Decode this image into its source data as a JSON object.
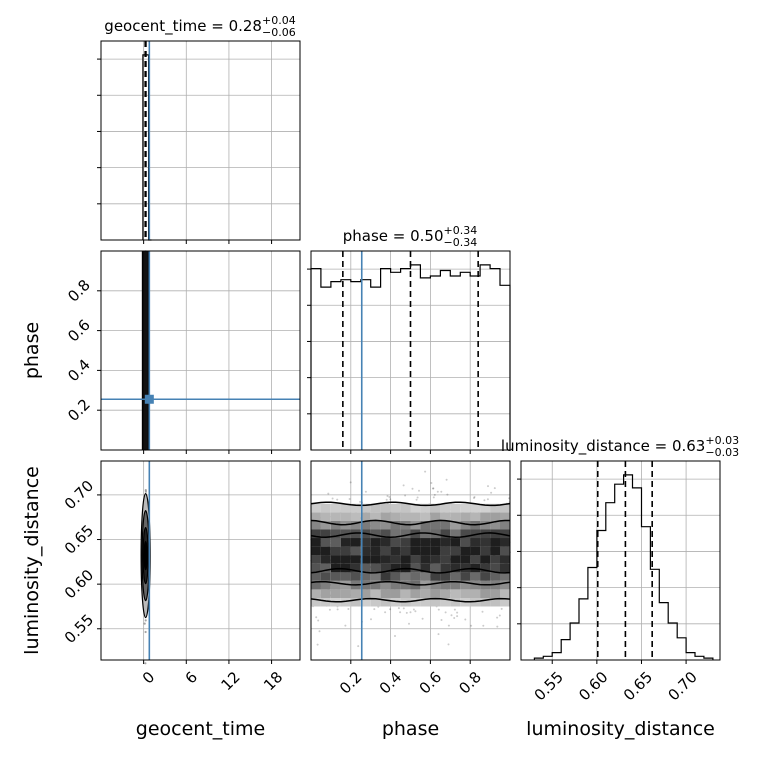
{
  "chart_data": {
    "type": "corner",
    "parameters": [
      "geocent_time",
      "phase",
      "luminosity_distance"
    ],
    "titles": {
      "geocent_time": {
        "name": "geocent_time",
        "median": "0.28",
        "plus": "+0.04",
        "minus": "−0.06"
      },
      "phase": {
        "name": "phase",
        "median": "0.50",
        "plus": "+0.34",
        "minus": "−0.34"
      },
      "luminosity_distance": {
        "name": "luminosity_distance",
        "median": "0.63",
        "plus": "+0.03",
        "minus": "−0.03"
      }
    },
    "truths": {
      "geocent_time": 0.8,
      "phase": 0.255
    },
    "axes": {
      "geocent_time": {
        "range": [
          -6,
          22
        ],
        "ticks": [
          0,
          6,
          12,
          18
        ],
        "tick_labels": [
          "0",
          "6",
          "12",
          "18"
        ],
        "grid": [
          0,
          6,
          12,
          18
        ]
      },
      "phase": {
        "range": [
          0,
          1
        ],
        "ticks": [
          0.2,
          0.4,
          0.6,
          0.8
        ],
        "tick_labels": [
          "0.2",
          "0.4",
          "0.6",
          "0.8"
        ],
        "grid": [
          0.2,
          0.4,
          0.6,
          0.8
        ]
      },
      "luminosity_distance": {
        "range": [
          0.515,
          0.738
        ],
        "ticks": [
          0.55,
          0.6,
          0.65,
          0.7
        ],
        "tick_labels": [
          "0.55",
          "0.60",
          "0.65",
          "0.70"
        ],
        "grid": [
          0.55,
          0.6,
          0.65,
          0.7
        ]
      }
    },
    "histograms": {
      "geocent_time": {
        "bins": [
          -0.1,
          0.3,
          0.7,
          1.1
        ],
        "counts": [
          1.0,
          1.0,
          0.0
        ],
        "quantiles": [
          0.22,
          0.28,
          0.32
        ]
      },
      "phase": {
        "bins": [
          0.0,
          0.05,
          0.1,
          0.15,
          0.2,
          0.25,
          0.3,
          0.35,
          0.4,
          0.45,
          0.5,
          0.55,
          0.6,
          0.65,
          0.7,
          0.75,
          0.8,
          0.85,
          0.9,
          0.95,
          1.0
        ],
        "counts": [
          0.98,
          0.88,
          0.91,
          0.92,
          0.91,
          0.92,
          0.88,
          0.98,
          0.96,
          0.98,
          1.0,
          0.93,
          0.94,
          0.97,
          0.94,
          0.96,
          0.94,
          1.0,
          0.98,
          0.89
        ],
        "quantiles": [
          0.16,
          0.5,
          0.84
        ]
      },
      "luminosity_distance": {
        "bins": [
          0.53,
          0.54,
          0.55,
          0.56,
          0.57,
          0.58,
          0.59,
          0.6,
          0.61,
          0.62,
          0.63,
          0.64,
          0.65,
          0.66,
          0.67,
          0.68,
          0.69,
          0.7,
          0.71,
          0.72,
          0.73
        ],
        "counts": [
          0.01,
          0.02,
          0.04,
          0.11,
          0.2,
          0.33,
          0.5,
          0.7,
          0.85,
          0.95,
          1.0,
          0.93,
          0.72,
          0.49,
          0.31,
          0.2,
          0.12,
          0.04,
          0.02,
          0.01
        ],
        "quantiles": [
          0.601,
          0.632,
          0.662
        ]
      }
    },
    "grid": true
  }
}
